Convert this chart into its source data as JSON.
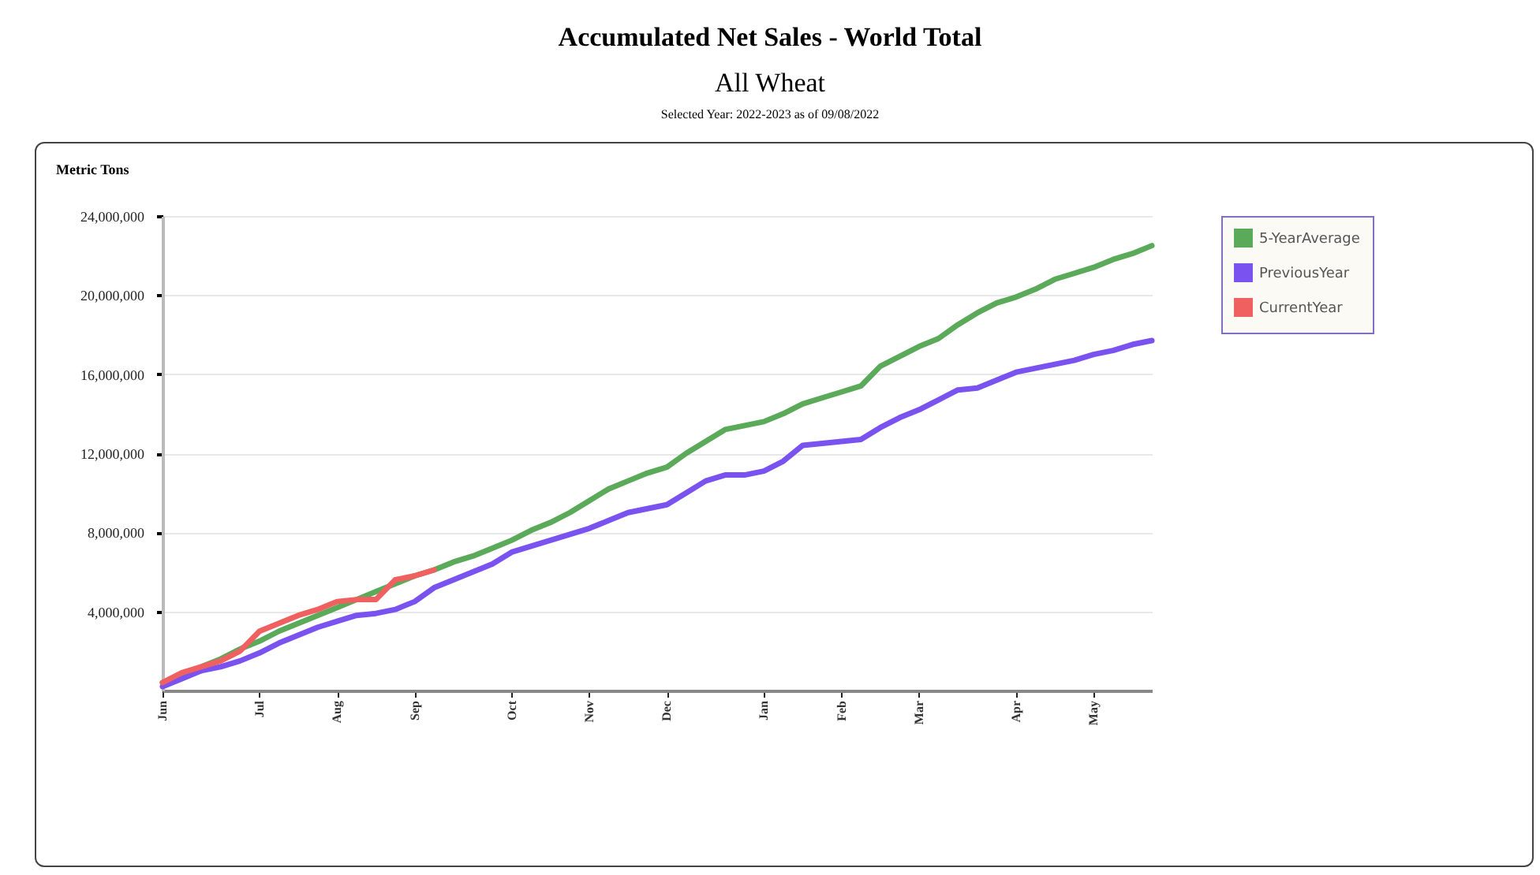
{
  "chart_data": {
    "type": "line",
    "title": "Accumulated Net Sales - World Total",
    "subtitle": "All Wheat",
    "annotations": [
      "Selected Year: 2022-2023 as of 09/08/2022"
    ],
    "ylabel": "Metric Tons",
    "categories": [
      "Jun",
      null,
      null,
      null,
      null,
      "Jul",
      null,
      null,
      null,
      "Aug",
      null,
      null,
      null,
      "Sep",
      null,
      null,
      null,
      null,
      "Oct",
      null,
      null,
      null,
      "Nov",
      null,
      null,
      null,
      "Dec",
      null,
      null,
      null,
      null,
      "Jan",
      null,
      null,
      null,
      "Feb",
      null,
      null,
      null,
      "Mar",
      null,
      null,
      null,
      null,
      "Apr",
      null,
      null,
      null,
      "May",
      null,
      null,
      null
    ],
    "ylim": [
      0,
      24000000
    ],
    "yticks": [
      {
        "value": 4000000,
        "label": "4,000,000"
      },
      {
        "value": 8000000,
        "label": "8,000,000"
      },
      {
        "value": 12000000,
        "label": "12,000,000"
      },
      {
        "value": 16000000,
        "label": "16,000,000"
      },
      {
        "value": 20000000,
        "label": "20,000,000"
      },
      {
        "value": 24000000,
        "label": "24,000,000"
      }
    ],
    "grid": "y",
    "legend": "right",
    "series": [
      {
        "name": "5-YearAverage",
        "color": "#5aaa5a",
        "values": [
          400000,
          750000,
          1200000,
          1600000,
          2100000,
          2500000,
          3000000,
          3400000,
          3800000,
          4200000,
          4600000,
          5000000,
          5400000,
          5800000,
          6100000,
          6500000,
          6800000,
          7200000,
          7600000,
          8100000,
          8500000,
          9000000,
          9600000,
          10200000,
          10600000,
          11000000,
          11300000,
          12000000,
          12600000,
          13200000,
          13400000,
          13600000,
          14000000,
          14500000,
          14800000,
          15100000,
          15400000,
          16400000,
          16900000,
          17400000,
          17800000,
          18500000,
          19100000,
          19600000,
          19900000,
          20300000,
          20800000,
          21100000,
          21400000,
          21800000,
          22100000,
          22500000
        ]
      },
      {
        "name": "PreviousYear",
        "color": "#7a52f0",
        "values": [
          200000,
          600000,
          1000000,
          1200000,
          1500000,
          1900000,
          2400000,
          2800000,
          3200000,
          3500000,
          3800000,
          3900000,
          4100000,
          4500000,
          5200000,
          5600000,
          6000000,
          6400000,
          7000000,
          7300000,
          7600000,
          7900000,
          8200000,
          8600000,
          9000000,
          9200000,
          9400000,
          10000000,
          10600000,
          10900000,
          10900000,
          11100000,
          11600000,
          12400000,
          12500000,
          12600000,
          12700000,
          13300000,
          13800000,
          14200000,
          14700000,
          15200000,
          15300000,
          15700000,
          16100000,
          16300000,
          16500000,
          16700000,
          17000000,
          17200000,
          17500000,
          17700000
        ]
      },
      {
        "name": "CurrentYear",
        "color": "#f06060",
        "values": [
          400000,
          900000,
          1200000,
          1500000,
          2000000,
          3000000,
          3400000,
          3800000,
          4100000,
          4500000,
          4600000,
          4600000,
          5600000,
          5800000,
          6100000,
          null,
          null,
          null,
          null,
          null,
          null,
          null,
          null,
          null,
          null,
          null,
          null,
          null,
          null,
          null,
          null,
          null,
          null,
          null,
          null,
          null,
          null,
          null,
          null,
          null,
          null,
          null,
          null,
          null,
          null,
          null,
          null,
          null,
          null,
          null,
          null,
          null
        ]
      }
    ]
  }
}
